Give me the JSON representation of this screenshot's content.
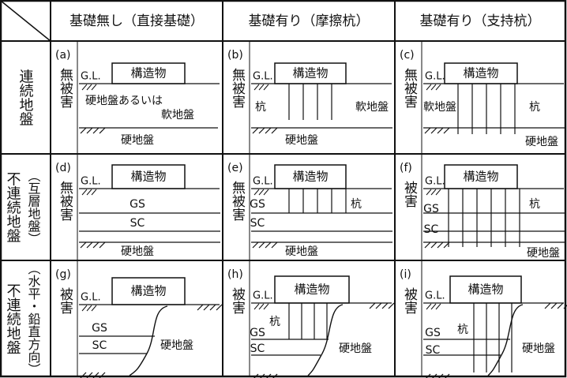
{
  "headers": [
    "基礎無し（直接基礎）",
    "基礎有り（摩擦杭）",
    "基礎有り（支持杭）"
  ],
  "rows": [
    {
      "label": "連続地盤",
      "cells": [
        {
          "id": "(a)",
          "damage": "無被害",
          "gl": "G.L.",
          "structure": "構造物",
          "labels": [
            "硬地盤あるいは",
            "軟地盤",
            "硬地盤"
          ]
        },
        {
          "id": "(b)",
          "damage": "無被害",
          "gl": "G.L.",
          "structure": "構造物",
          "labels": [
            "杭",
            "軟地盤",
            "硬地盤"
          ]
        },
        {
          "id": "(c)",
          "damage": "無被害",
          "gl": "G.L.",
          "structure": "構造物",
          "labels": [
            "軟地盤",
            "杭",
            "硬地盤"
          ]
        }
      ]
    },
    {
      "label": "不連続地盤",
      "note": "（互層地盤）",
      "cells": [
        {
          "id": "(d)",
          "damage": "無被害",
          "gl": "G.L.",
          "structure": "構造物",
          "labels": [
            "GS",
            "SC",
            "硬地盤"
          ]
        },
        {
          "id": "(e)",
          "damage": "無被害",
          "gl": "G.L.",
          "structure": "構造物",
          "labels": [
            "杭",
            "GS",
            "SC",
            "硬地盤"
          ]
        },
        {
          "id": "(f)",
          "damage": "被害",
          "gl": "G.L.",
          "structure": "構造物",
          "labels": [
            "GS",
            "杭",
            "SC",
            "硬地盤"
          ]
        }
      ]
    },
    {
      "label": "不連続地盤",
      "note": "（水平・鉛直方向）",
      "cells": [
        {
          "id": "(g)",
          "damage": "被害",
          "gl": "G.L.",
          "structure": "構造物",
          "labels": [
            "GS",
            "SC",
            "硬地盤"
          ]
        },
        {
          "id": "(h)",
          "damage": "被害",
          "gl": "G.L.",
          "structure": "構造物",
          "labels": [
            "杭",
            "GS",
            "SC",
            "硬地盤"
          ]
        },
        {
          "id": "(i)",
          "damage": "被害",
          "gl": "G.L.",
          "structure": "構造物",
          "labels": [
            "GS",
            "杭",
            "SC",
            "硬地盤"
          ]
        }
      ]
    }
  ]
}
